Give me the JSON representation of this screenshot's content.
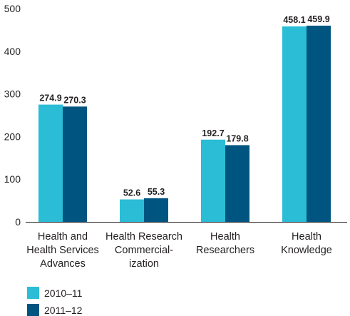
{
  "chart_data": {
    "type": "bar",
    "ylim": [
      0,
      500
    ],
    "yticks": [
      "0",
      "100",
      "200",
      "300",
      "400",
      "500"
    ],
    "categories": [
      [
        "Health and",
        "Health Services",
        "Advances"
      ],
      [
        "Health Research",
        "Commercial-",
        "ization"
      ],
      [
        "Health",
        "Researchers"
      ],
      [
        "Health",
        "Knowledge"
      ]
    ],
    "series": [
      {
        "name": "2010–11",
        "color": "#2bbcd6",
        "values": [
          274.9,
          52.6,
          192.7,
          458.1
        ],
        "labels": [
          "274.9",
          "52.6",
          "192.7",
          "458.1"
        ]
      },
      {
        "name": "2011–12",
        "color": "#005580",
        "values": [
          270.3,
          55.3,
          179.8,
          459.9
        ],
        "labels": [
          "270.3",
          "55.3",
          "179.8",
          "459.9"
        ]
      }
    ],
    "grid": false,
    "legend_position": "bottom-left"
  }
}
